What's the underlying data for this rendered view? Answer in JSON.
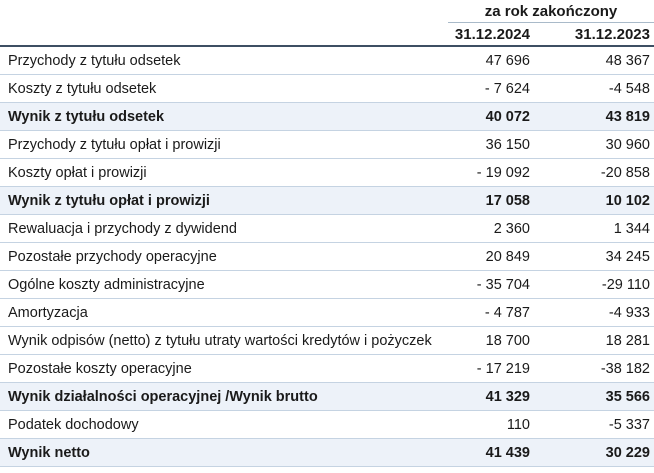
{
  "table": {
    "header": {
      "group_label": "za rok zakończony",
      "columns": [
        "31.12.2024",
        "31.12.2023"
      ]
    },
    "rows": [
      {
        "label": "Przychody z tytułu odsetek",
        "v2024": "47 696",
        "v2023": "48 367",
        "bold": false
      },
      {
        "label": "Koszty z tytułu odsetek",
        "v2024": "- 7 624",
        "v2023": "-4 548",
        "bold": false
      },
      {
        "label": "Wynik z tytułu odsetek",
        "v2024": "40 072",
        "v2023": "43 819",
        "bold": true
      },
      {
        "label": "Przychody z tytułu opłat i prowizji",
        "v2024": "36 150",
        "v2023": "30 960",
        "bold": false
      },
      {
        "label": "Koszty opłat i prowizji",
        "v2024": "- 19 092",
        "v2023": "-20 858",
        "bold": false
      },
      {
        "label": "Wynik z tytułu opłat i prowizji",
        "v2024": "17 058",
        "v2023": "10 102",
        "bold": true
      },
      {
        "label": "Rewaluacja i przychody z dywidend",
        "v2024": "2 360",
        "v2023": "1 344",
        "bold": false
      },
      {
        "label": "Pozostałe przychody operacyjne",
        "v2024": "20 849",
        "v2023": "34 245",
        "bold": false
      },
      {
        "label": "Ogólne koszty administracyjne",
        "v2024": "- 35 704",
        "v2023": "-29 110",
        "bold": false
      },
      {
        "label": "Amortyzacja",
        "v2024": "- 4 787",
        "v2023": "-4 933",
        "bold": false
      },
      {
        "label": "Wynik odpisów (netto) z tytułu utraty wartości kredytów i pożyczek",
        "v2024": "18 700",
        "v2023": "18 281",
        "bold": false
      },
      {
        "label": "Pozostałe koszty operacyjne",
        "v2024": "- 17 219",
        "v2023": "-38 182",
        "bold": false
      },
      {
        "label": "Wynik działalności operacyjnej /Wynik brutto",
        "v2024": "41 329",
        "v2023": "35 566",
        "bold": true
      },
      {
        "label": "Podatek dochodowy",
        "v2024": "110",
        "v2023": "-5 337",
        "bold": false
      },
      {
        "label": "Wynik netto",
        "v2024": "41 439",
        "v2023": "30 229",
        "bold": true
      }
    ],
    "colors": {
      "text": "#1a1a1a",
      "highlight_row_bg": "#edf2f9",
      "row_rule": "#c5d3e2",
      "header_rule": "#3d4f63",
      "group_rule": "#a9bac9"
    }
  }
}
